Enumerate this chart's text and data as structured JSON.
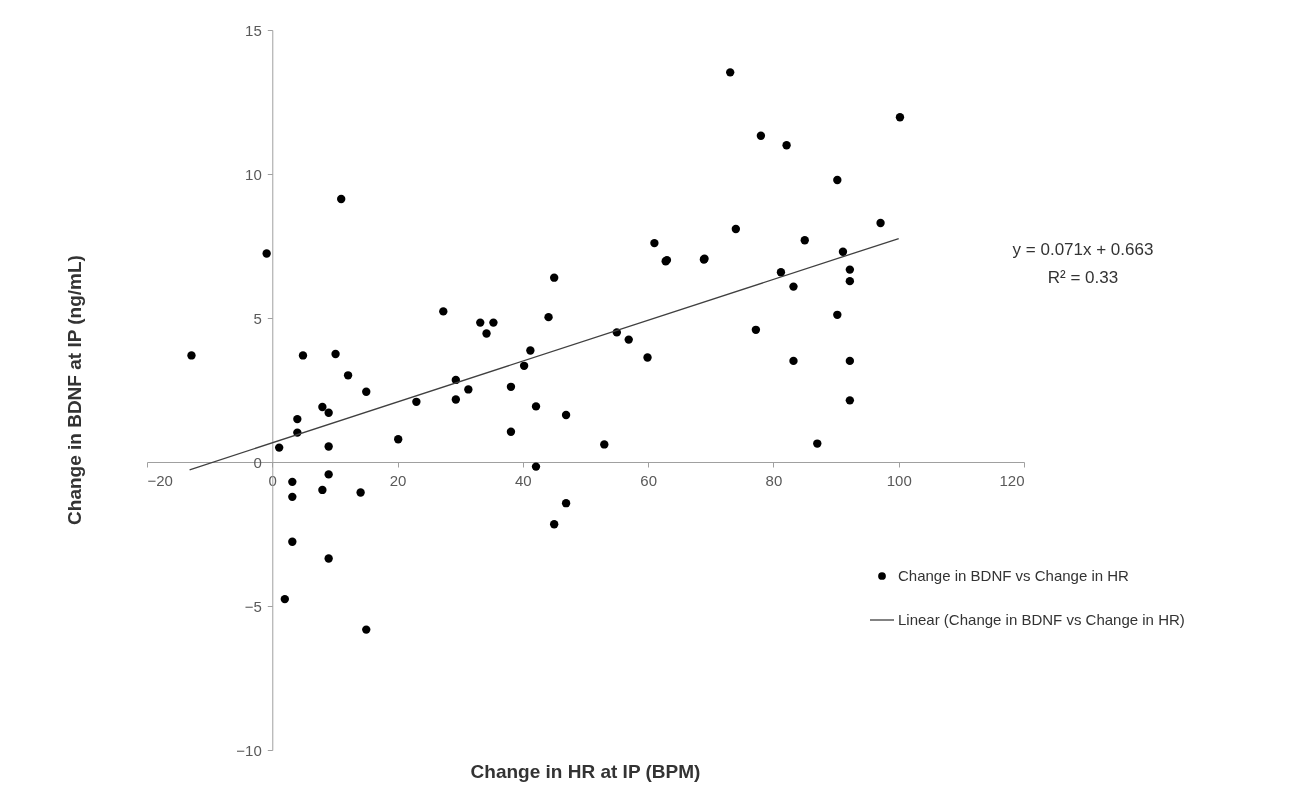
{
  "chart_data": {
    "type": "scatter",
    "xlabel": "Change in HR at IP (BPM)",
    "ylabel": "Change in BDNF at IP (ng/mL)",
    "xlim": [
      -20,
      120
    ],
    "xticks": [
      -20,
      0,
      20,
      40,
      60,
      80,
      100,
      120
    ],
    "ylim": [
      -10,
      15
    ],
    "yticks": [
      -10,
      -5,
      0,
      5,
      10,
      15
    ],
    "grid": false,
    "legend": "bottom right",
    "annotations": [
      "y = 0.071x + 0.663",
      "R² = 0.33"
    ],
    "series": [
      {
        "name": "Change in BDNF vs Change in HR",
        "color": "#000000",
        "marker": "circle",
        "x": [
          -12.9,
          -0.9,
          11.0,
          4.9,
          10.1,
          12.1,
          15.0,
          8.0,
          9.0,
          4.0,
          4.0,
          1.1,
          9.0,
          20.1,
          23.0,
          9.0,
          3.2,
          3.2,
          8.0,
          14.1,
          3.2,
          9.0,
          2.0,
          15.0,
          27.3,
          33.2,
          35.3,
          34.2,
          45.0,
          44.1,
          41.2,
          40.2,
          29.3,
          31.3,
          29.3,
          38.1,
          42.1,
          46.9,
          38.1,
          53.0,
          42.1,
          46.9,
          45.0,
          55.0,
          56.9,
          59.9,
          62.8,
          68.9,
          73.1,
          100.2,
          78.0,
          82.1,
          90.2,
          97.1,
          74.0,
          61.0,
          85.0,
          63.0,
          69.0,
          91.1,
          81.2,
          92.2,
          92.2,
          83.2,
          90.2,
          77.2,
          83.2,
          92.2,
          92.2,
          87.0
        ],
        "values": [
          3.7,
          7.24,
          9.13,
          3.7,
          3.75,
          3.01,
          2.44,
          1.91,
          1.71,
          1.49,
          1.02,
          0.5,
          0.54,
          0.79,
          2.09,
          -0.43,
          -0.69,
          -1.21,
          -0.97,
          -1.06,
          -2.77,
          -3.35,
          -4.76,
          -5.82,
          5.23,
          4.84,
          4.84,
          4.46,
          6.4,
          5.03,
          3.87,
          3.34,
          2.85,
          2.52,
          2.17,
          2.61,
          1.93,
          1.63,
          1.05,
          0.61,
          -0.16,
          -1.43,
          -2.16,
          4.5,
          4.25,
          3.63,
          6.97,
          7.03,
          13.53,
          11.97,
          11.33,
          11.0,
          9.79,
          8.3,
          8.09,
          7.6,
          7.7,
          7.01,
          7.06,
          7.3,
          6.59,
          6.68,
          6.28,
          6.09,
          5.11,
          4.59,
          3.51,
          3.51,
          2.14,
          0.64
        ]
      },
      {
        "name": "Linear (Change in BDNF vs Change in HR)",
        "type": "line",
        "color": "#404040",
        "marker": "none",
        "line_style": "solid",
        "x": [
          -13.2,
          100
        ],
        "values": [
          -0.27,
          7.76
        ]
      }
    ]
  }
}
